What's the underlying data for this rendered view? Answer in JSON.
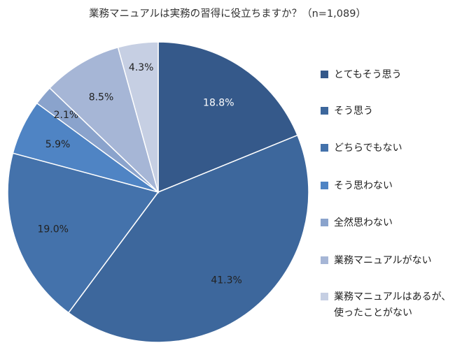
{
  "chart_data": {
    "type": "pie",
    "title": "業務マニュアルは実務の習得に役立ちますか？（n=1,089）",
    "categories": [
      "とてもそう思う",
      "そう思う",
      "どちらでもない",
      "そう思わない",
      "全然思わない",
      "業務マニュアルがない",
      "業務マニュアルはあるが、使ったことがない"
    ],
    "values": [
      18.8,
      41.3,
      19.0,
      5.9,
      2.1,
      8.5,
      4.3
    ],
    "value_labels": [
      "18.8%",
      "41.3%",
      "19.0%",
      "5.9%",
      "2.1%",
      "8.5%",
      "4.3%"
    ],
    "colors": [
      "#35598a",
      "#3d679c",
      "#4472ab",
      "#4f84c4",
      "#8aa3cc",
      "#a6b6d6",
      "#c6cfe3"
    ],
    "label_colors": [
      "#ffffff",
      "#222222",
      "#222222",
      "#222222",
      "#222222",
      "#222222",
      "#222222"
    ],
    "start_angle": "12 o'clock",
    "direction": "clockwise",
    "legend_position": "right"
  }
}
